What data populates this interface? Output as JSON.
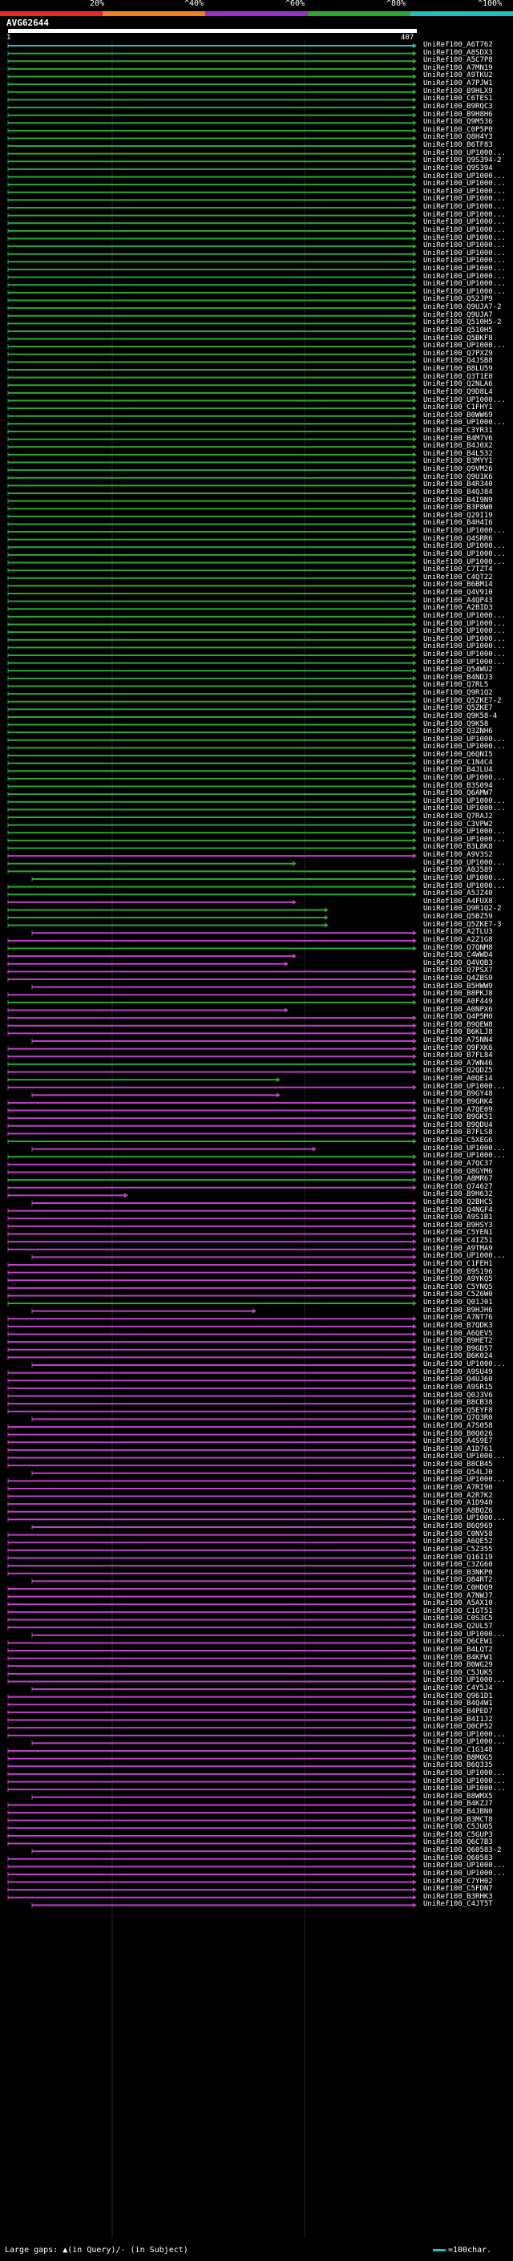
{
  "scale": {
    "labels": [
      "20%",
      "^40%",
      "^60%",
      "^80%",
      "^100%"
    ],
    "colors": [
      "#e8262a",
      "#f58020",
      "#9b30c8",
      "#2aa832",
      "#1fbfbf"
    ]
  },
  "query": {
    "title": "AVG62644",
    "start": "1",
    "end": "407"
  },
  "footer": {
    "gaps_text": "Large gaps: ▲(in Query)/- (in Subject)",
    "key_text": "=100char."
  },
  "hits": [
    {
      "label": "UniRef100_A6T762",
      "color": "cyan"
    },
    {
      "label": "UniRef100_A8SDX3",
      "color": "green"
    },
    {
      "label": "UniRef100_A5C7P8",
      "color": "green"
    },
    {
      "label": "UniRef100_A7MN19",
      "color": "green"
    },
    {
      "label": "UniRef100_A9TKU2",
      "color": "green"
    },
    {
      "label": "UniRef100_A7PJW1",
      "color": "green"
    },
    {
      "label": "UniRef100_B9HLX9",
      "color": "green"
    },
    {
      "label": "UniRef100_C6TES1",
      "color": "green"
    },
    {
      "label": "UniRef100_B9RQC3",
      "color": "green"
    },
    {
      "label": "UniRef100_B9H8H6",
      "color": "green"
    },
    {
      "label": "UniRef100_Q9M536",
      "color": "green"
    },
    {
      "label": "UniRef100_C0P5P0",
      "color": "green"
    },
    {
      "label": "UniRef100_Q8H4Y3",
      "color": "green"
    },
    {
      "label": "UniRef100_B6TF83",
      "color": "green"
    },
    {
      "label": "UniRef100_UP1000...",
      "color": "green"
    },
    {
      "label": "UniRef100_Q9S394-2",
      "color": "green"
    },
    {
      "label": "UniRef100_Q9S394",
      "color": "green"
    },
    {
      "label": "UniRef100_UP1000...",
      "color": "green"
    },
    {
      "label": "UniRef100_UP1000...",
      "color": "green"
    },
    {
      "label": "UniRef100_UP1000...",
      "color": "green"
    },
    {
      "label": "UniRef100_UP1000...",
      "color": "green"
    },
    {
      "label": "UniRef100_UP1000...",
      "color": "green"
    },
    {
      "label": "UniRef100_UP1000...",
      "color": "green"
    },
    {
      "label": "UniRef100_UP1000...",
      "color": "green"
    },
    {
      "label": "UniRef100_UP1000...",
      "color": "green"
    },
    {
      "label": "UniRef100_UP1000...",
      "color": "green"
    },
    {
      "label": "UniRef100_UP1000...",
      "color": "green"
    },
    {
      "label": "UniRef100_UP1000...",
      "color": "green"
    },
    {
      "label": "UniRef100_UP1000...",
      "color": "green"
    },
    {
      "label": "UniRef100_UP1000...",
      "color": "green"
    },
    {
      "label": "UniRef100_UP1000...",
      "color": "green"
    },
    {
      "label": "UniRef100_UP1000...",
      "color": "green"
    },
    {
      "label": "UniRef100_UP1000...",
      "color": "green"
    },
    {
      "label": "UniRef100_Q52JP9",
      "color": "green"
    },
    {
      "label": "UniRef100_Q9UJA7-2",
      "color": "green"
    },
    {
      "label": "UniRef100_Q9UJA7",
      "color": "green"
    },
    {
      "label": "UniRef100_Q510H5-2",
      "color": "green"
    },
    {
      "label": "UniRef100_Q510H5",
      "color": "green"
    },
    {
      "label": "UniRef100_Q5BKF8",
      "color": "green"
    },
    {
      "label": "UniRef100_UP1000...",
      "color": "green"
    },
    {
      "label": "UniRef100_Q7PXZ9",
      "color": "green"
    },
    {
      "label": "UniRef100_Q4JSB8",
      "color": "green"
    },
    {
      "label": "UniRef100_B8LU59",
      "color": "green"
    },
    {
      "label": "UniRef100_Q3T1E8",
      "color": "green"
    },
    {
      "label": "UniRef100_Q2NLA6",
      "color": "green"
    },
    {
      "label": "UniRef100_Q9D8L4",
      "color": "green"
    },
    {
      "label": "UniRef100_UP1000...",
      "color": "green"
    },
    {
      "label": "UniRef100_C1FHY1",
      "color": "green"
    },
    {
      "label": "UniRef100_B0WW69",
      "color": "green"
    },
    {
      "label": "UniRef100_UP1000...",
      "color": "green"
    },
    {
      "label": "UniRef100_C3YR31",
      "color": "green"
    },
    {
      "label": "UniRef100_B4M7V6",
      "color": "green"
    },
    {
      "label": "UniRef100_B4J0X2",
      "color": "green"
    },
    {
      "label": "UniRef100_B4L532",
      "color": "green"
    },
    {
      "label": "UniRef100_B3MYY1",
      "color": "green"
    },
    {
      "label": "UniRef100_Q9VM26",
      "color": "green"
    },
    {
      "label": "UniRef100_Q9U1K6",
      "color": "green"
    },
    {
      "label": "UniRef100_B4R340",
      "color": "green"
    },
    {
      "label": "UniRef100_B4QJ84",
      "color": "green"
    },
    {
      "label": "UniRef100_B4I9N9",
      "color": "green"
    },
    {
      "label": "UniRef100_B3P8W0",
      "color": "green"
    },
    {
      "label": "UniRef100_Q29I19",
      "color": "green"
    },
    {
      "label": "UniRef100_B4H4I6",
      "color": "green"
    },
    {
      "label": "UniRef100_UP1000...",
      "color": "green"
    },
    {
      "label": "UniRef100_Q4SRR6",
      "color": "green"
    },
    {
      "label": "UniRef100_UP1000...",
      "color": "green"
    },
    {
      "label": "UniRef100_UP1000...",
      "color": "green"
    },
    {
      "label": "UniRef100_UP1000...",
      "color": "green"
    },
    {
      "label": "UniRef100_C7TZT4",
      "color": "green"
    },
    {
      "label": "UniRef100_C4QT22",
      "color": "green"
    },
    {
      "label": "UniRef100_B6BM14",
      "color": "green"
    },
    {
      "label": "UniRef100_Q4V910",
      "color": "green"
    },
    {
      "label": "UniRef100_A4QP43",
      "color": "green"
    },
    {
      "label": "UniRef100_A2BID3",
      "color": "green"
    },
    {
      "label": "UniRef100_UP1000...",
      "color": "green"
    },
    {
      "label": "UniRef100_UP1000...",
      "color": "green"
    },
    {
      "label": "UniRef100_UP1000...",
      "color": "green"
    },
    {
      "label": "UniRef100_UP1000...",
      "color": "green"
    },
    {
      "label": "UniRef100_UP1000...",
      "color": "green"
    },
    {
      "label": "UniRef100_UP1000...",
      "color": "green"
    },
    {
      "label": "UniRef100_UP1000...",
      "color": "green"
    },
    {
      "label": "UniRef100_Q54WU2",
      "color": "green"
    },
    {
      "label": "UniRef100_B4NDJ3",
      "color": "green"
    },
    {
      "label": "UniRef100_Q7RL5",
      "color": "green"
    },
    {
      "label": "UniRef100_Q9R1Q2",
      "color": "green"
    },
    {
      "label": "UniRef100_Q5ZKE7-2",
      "color": "green"
    },
    {
      "label": "UniRef100_Q5ZKE7",
      "color": "green"
    },
    {
      "label": "UniRef100_Q9K58-4",
      "color": "green"
    },
    {
      "label": "UniRef100_Q9K58",
      "color": "green"
    },
    {
      "label": "UniRef100_Q3ZNH6",
      "color": "green"
    },
    {
      "label": "UniRef100_UP1000...",
      "color": "green"
    },
    {
      "label": "UniRef100_UP1000...",
      "color": "green"
    },
    {
      "label": "UniRef100_Q6QNI5",
      "color": "green"
    },
    {
      "label": "UniRef100_C1N4C4",
      "color": "green"
    },
    {
      "label": "UniRef100_B4JLU4",
      "color": "green"
    },
    {
      "label": "UniRef100_UP1000...",
      "color": "green"
    },
    {
      "label": "UniRef100_B3S094",
      "color": "green"
    },
    {
      "label": "UniRef100_Q6AMW7",
      "color": "green"
    },
    {
      "label": "UniRef100_UP1000...",
      "color": "green"
    },
    {
      "label": "UniRef100_UP1000...",
      "color": "green"
    },
    {
      "label": "UniRef100_Q7RAJ2",
      "color": "green"
    },
    {
      "label": "UniRef100_C3VPW2",
      "color": "green"
    },
    {
      "label": "UniRef100_UP1000...",
      "color": "green"
    },
    {
      "label": "UniRef100_UP1000...",
      "color": "green"
    },
    {
      "label": "UniRef100_B3L8K8",
      "color": "green"
    },
    {
      "label": "UniRef100_A9V3S2",
      "color": "magenta"
    },
    {
      "label": "UniRef100_UP1000...",
      "color": "green"
    },
    {
      "label": "UniRef100_A0J589",
      "color": "green"
    },
    {
      "label": "UniRef100_UP1000...",
      "color": "green"
    },
    {
      "label": "UniRef100_UP1000...",
      "color": "green"
    },
    {
      "label": "UniRef100_A5JZ40",
      "color": "green"
    },
    {
      "label": "UniRef100_A4FUX8",
      "color": "magenta"
    },
    {
      "label": "UniRef100_Q9R1Q2-2",
      "color": "green"
    },
    {
      "label": "UniRef100_Q5BZ59",
      "color": "green"
    },
    {
      "label": "UniRef100_Q5ZKE7-3",
      "color": "green"
    },
    {
      "label": "UniRef100_A2TLU3",
      "color": "magenta"
    },
    {
      "label": "UniRef100_A2Z1G8",
      "color": "magenta"
    },
    {
      "label": "UniRef100_Q7QNM8",
      "color": "green"
    },
    {
      "label": "UniRef100_C4WWD4",
      "color": "magenta"
    },
    {
      "label": "UniRef100_Q4VQB3",
      "color": "magenta"
    },
    {
      "label": "UniRef100_Q7PSX7",
      "color": "magenta"
    },
    {
      "label": "UniRef100_Q4ZBS9",
      "color": "magenta"
    },
    {
      "label": "UniRef100_B5HWW9",
      "color": "magenta"
    },
    {
      "label": "UniRef100_B8PKJ8",
      "color": "magenta"
    },
    {
      "label": "UniRef100_A0F449",
      "color": "green"
    },
    {
      "label": "UniRef100_A0NPX6",
      "color": "magenta"
    },
    {
      "label": "UniRef100_Q4P5M0",
      "color": "magenta"
    },
    {
      "label": "UniRef100_B9QEW8",
      "color": "magenta"
    },
    {
      "label": "UniRef100_B6KLJ8",
      "color": "magenta"
    },
    {
      "label": "UniRef100_A7SNN4",
      "color": "magenta"
    },
    {
      "label": "UniRef100_Q9FXK6",
      "color": "magenta"
    },
    {
      "label": "UniRef100_B7FL84",
      "color": "magenta"
    },
    {
      "label": "UniRef100_A7WN46",
      "color": "green"
    },
    {
      "label": "UniRef100_Q2QDZ5",
      "color": "magenta"
    },
    {
      "label": "UniRef100_A0QE14",
      "color": "green"
    },
    {
      "label": "UniRef100_UP1000...",
      "color": "magenta"
    },
    {
      "label": "UniRef100_B9GY48",
      "color": "magenta"
    },
    {
      "label": "UniRef100_B9GRK4",
      "color": "magenta"
    },
    {
      "label": "UniRef100_A7QE09",
      "color": "magenta"
    },
    {
      "label": "UniRef100_B9GK51",
      "color": "magenta"
    },
    {
      "label": "UniRef100_B9QDU4",
      "color": "magenta"
    },
    {
      "label": "UniRef100_B7FLS8",
      "color": "magenta"
    },
    {
      "label": "UniRef100_C5XEG6",
      "color": "green"
    },
    {
      "label": "UniRef100_UP1000...",
      "color": "magenta"
    },
    {
      "label": "UniRef100_UP1000...",
      "color": "green"
    },
    {
      "label": "UniRef100_A7QC37",
      "color": "magenta"
    },
    {
      "label": "UniRef100_Q8GYM6",
      "color": "magenta"
    },
    {
      "label": "UniRef100_A8MR67",
      "color": "green"
    },
    {
      "label": "UniRef100_Q74627",
      "color": "magenta"
    },
    {
      "label": "UniRef100_B9H632",
      "color": "magenta"
    },
    {
      "label": "UniRef100_Q2BHC5",
      "color": "magenta"
    },
    {
      "label": "UniRef100_Q4NGF4",
      "color": "magenta"
    },
    {
      "label": "UniRef100_A9S1B1",
      "color": "magenta"
    },
    {
      "label": "UniRef100_B9HSY3",
      "color": "magenta"
    },
    {
      "label": "UniRef100_C5YEN1",
      "color": "magenta"
    },
    {
      "label": "UniRef100_C4IZ51",
      "color": "magenta"
    },
    {
      "label": "UniRef100_A9TMA9",
      "color": "magenta"
    },
    {
      "label": "UniRef100_UP1000...",
      "color": "magenta"
    },
    {
      "label": "UniRef100_C1FEH1",
      "color": "magenta"
    },
    {
      "label": "UniRef100_B9S196",
      "color": "magenta"
    },
    {
      "label": "UniRef100_A9YKQ5",
      "color": "magenta"
    },
    {
      "label": "UniRef100_C5YNQ5",
      "color": "magenta"
    },
    {
      "label": "UniRef100_C5Z6W0",
      "color": "magenta"
    },
    {
      "label": "UniRef100_Q01J01",
      "color": "green"
    },
    {
      "label": "UniRef100_B9HJH6",
      "color": "magenta"
    },
    {
      "label": "UniRef100_A7NT76",
      "color": "magenta"
    },
    {
      "label": "UniRef100_B7QDK3",
      "color": "magenta"
    },
    {
      "label": "UniRef100_A6QEV5",
      "color": "magenta"
    },
    {
      "label": "UniRef100_B9HET2",
      "color": "magenta"
    },
    {
      "label": "UniRef100_B9GD57",
      "color": "magenta"
    },
    {
      "label": "UniRef100_B6K024",
      "color": "magenta"
    },
    {
      "label": "UniRef100_UP1000...",
      "color": "magenta"
    },
    {
      "label": "UniRef100_A9SU49",
      "color": "magenta"
    },
    {
      "label": "UniRef100_Q4UJ60",
      "color": "magenta"
    },
    {
      "label": "UniRef100_A9SR15",
      "color": "magenta"
    },
    {
      "label": "UniRef100_Q0J3V6",
      "color": "magenta"
    },
    {
      "label": "UniRef100_B8CB38",
      "color": "magenta"
    },
    {
      "label": "UniRef100_Q5EYF8",
      "color": "magenta"
    },
    {
      "label": "UniRef100_Q7Q3R0",
      "color": "magenta"
    },
    {
      "label": "UniRef100_A7S058",
      "color": "magenta"
    },
    {
      "label": "UniRef100_B0Q026",
      "color": "magenta"
    },
    {
      "label": "UniRef100_A4S9E7",
      "color": "magenta"
    },
    {
      "label": "UniRef100_A1D761",
      "color": "magenta"
    },
    {
      "label": "UniRef100_UP1000...",
      "color": "magenta"
    },
    {
      "label": "UniRef100_B8CB45",
      "color": "magenta"
    },
    {
      "label": "UniRef100_Q54LJ0",
      "color": "magenta"
    },
    {
      "label": "UniRef100_UP1000...",
      "color": "magenta"
    },
    {
      "label": "UniRef100_A7RI90",
      "color": "magenta"
    },
    {
      "label": "UniRef100_A2R7K2",
      "color": "magenta"
    },
    {
      "label": "UniRef100_A1D940",
      "color": "magenta"
    },
    {
      "label": "UniRef100_A8BQZ6",
      "color": "magenta"
    },
    {
      "label": "UniRef100_UP1000...",
      "color": "magenta"
    },
    {
      "label": "UniRef100_B6Q969",
      "color": "magenta"
    },
    {
      "label": "UniRef100_C0NV58",
      "color": "magenta"
    },
    {
      "label": "UniRef100_A6QE52",
      "color": "magenta"
    },
    {
      "label": "UniRef100_C5Z355",
      "color": "magenta"
    },
    {
      "label": "UniRef100_Q16I19",
      "color": "magenta"
    },
    {
      "label": "UniRef100_C3ZG60",
      "color": "magenta"
    },
    {
      "label": "UniRef100_B3NKP0",
      "color": "magenta"
    },
    {
      "label": "UniRef100_Q84RT2",
      "color": "magenta"
    },
    {
      "label": "UniRef100_C0HDQ9",
      "color": "magenta"
    },
    {
      "label": "UniRef100_A7NWJ7",
      "color": "magenta"
    },
    {
      "label": "UniRef100_A5AX10",
      "color": "magenta"
    },
    {
      "label": "UniRef100_C1GT51",
      "color": "magenta"
    },
    {
      "label": "UniRef100_C0S3C5",
      "color": "magenta"
    },
    {
      "label": "UniRef100_Q2UL57",
      "color": "magenta"
    },
    {
      "label": "UniRef100_UP1000...",
      "color": "magenta"
    },
    {
      "label": "UniRef100_Q6CEW1",
      "color": "magenta"
    },
    {
      "label": "UniRef100_B4LQT2",
      "color": "magenta"
    },
    {
      "label": "UniRef100_B4KFW1",
      "color": "magenta"
    },
    {
      "label": "UniRef100_B0WG29",
      "color": "magenta"
    },
    {
      "label": "UniRef100_C5JUK5",
      "color": "magenta"
    },
    {
      "label": "UniRef100_UP1000...",
      "color": "magenta"
    },
    {
      "label": "UniRef100_C4Y5J4",
      "color": "magenta"
    },
    {
      "label": "UniRef100_Q961D1",
      "color": "magenta"
    },
    {
      "label": "UniRef100_B4Q4W1",
      "color": "magenta"
    },
    {
      "label": "UniRef100_B4PED7",
      "color": "magenta"
    },
    {
      "label": "UniRef100_B4I1J2",
      "color": "magenta"
    },
    {
      "label": "UniRef100_Q0CP52",
      "color": "magenta"
    },
    {
      "label": "UniRef100_UP1000...",
      "color": "magenta"
    },
    {
      "label": "UniRef100_UP1000...",
      "color": "magenta"
    },
    {
      "label": "UniRef100_C1G148",
      "color": "magenta"
    },
    {
      "label": "UniRef100_B8MQG5",
      "color": "magenta"
    },
    {
      "label": "UniRef100_B6Q335",
      "color": "magenta"
    },
    {
      "label": "UniRef100_UP1000...",
      "color": "magenta"
    },
    {
      "label": "UniRef100_UP1000...",
      "color": "magenta"
    },
    {
      "label": "UniRef100_UP1000...",
      "color": "magenta"
    },
    {
      "label": "UniRef100_B8WMX5",
      "color": "magenta"
    },
    {
      "label": "UniRef100_B4KZJ7",
      "color": "magenta"
    },
    {
      "label": "UniRef100_B4JBN0",
      "color": "magenta"
    },
    {
      "label": "UniRef100_B3MCT8",
      "color": "magenta"
    },
    {
      "label": "UniRef100_C5JUO5",
      "color": "magenta"
    },
    {
      "label": "UniRef100_C5GUP3",
      "color": "magenta"
    },
    {
      "label": "UniRef100_Q6C7B3",
      "color": "magenta"
    },
    {
      "label": "UniRef100_Q60583-2",
      "color": "magenta"
    },
    {
      "label": "UniRef100_Q60583",
      "color": "magenta"
    },
    {
      "label": "UniRef100_UP1000...",
      "color": "magenta"
    },
    {
      "label": "UniRef100_UP1000...",
      "color": "magenta"
    },
    {
      "label": "UniRef100_C7YH02",
      "color": "magenta"
    },
    {
      "label": "UniRef100_C5FDN7",
      "color": "magenta"
    },
    {
      "label": "UniRef100_B3RHK3",
      "color": "magenta"
    },
    {
      "label": "UniRef100_C4JT5T",
      "color": "magenta"
    }
  ]
}
